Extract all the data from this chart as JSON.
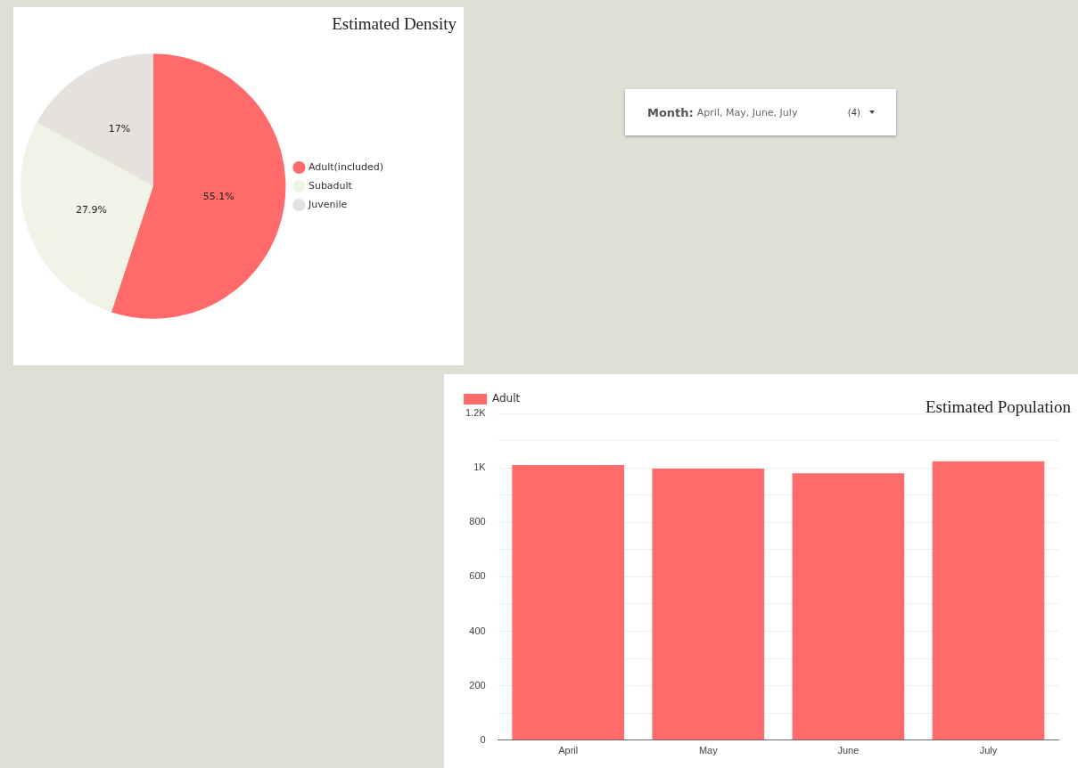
{
  "chart_data": [
    {
      "type": "pie",
      "title": "Estimated Density",
      "categories": [
        "Adult(included)",
        "Subadult",
        "Juvenile"
      ],
      "values": [
        55.1,
        27.9,
        17
      ],
      "colors": [
        "#ff6b6b",
        "#f0f4e6",
        "#e6e1dd"
      ],
      "value_labels": [
        "55.1%",
        "27.9%",
        "17%"
      ],
      "legend": "right"
    },
    {
      "type": "other",
      "title": "Month:",
      "annotations": [
        "April, May, June, July",
        "(4)"
      ]
    },
    {
      "type": "bar",
      "title": "Estimated Population",
      "categories": [
        "April",
        "May",
        "June",
        "July"
      ],
      "series": [
        {
          "name": "Adult",
          "color": "#ff6b6b",
          "values": [
            1010,
            997,
            980,
            1024
          ]
        }
      ],
      "ylim": [
        0,
        1200
      ],
      "yticks": [
        0,
        {
          "value": 100,
          "label": null
        },
        200,
        {
          "value": 300,
          "label": null
        },
        400,
        {
          "value": 500,
          "label": null
        },
        600,
        {
          "value": 700,
          "label": null
        },
        800,
        {
          "value": 900,
          "label": null
        },
        {
          "value": 1000,
          "label": "1K"
        },
        {
          "value": 1100,
          "label": null
        },
        {
          "value": 1200,
          "label": "1.2K"
        }
      ],
      "grid": "y",
      "legend": "top left"
    }
  ]
}
